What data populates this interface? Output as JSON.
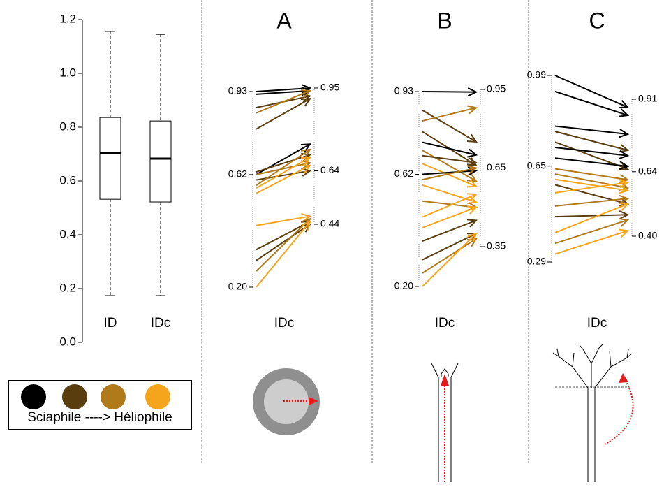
{
  "chart_data": [
    {
      "type": "box",
      "categories": [
        "ID",
        "IDc"
      ],
      "boxes": [
        {
          "min": 0.174,
          "q1": 0.532,
          "median": 0.704,
          "q3": 0.836,
          "max": 1.156
        },
        {
          "min": 0.174,
          "q1": 0.522,
          "median": 0.683,
          "q3": 0.823,
          "max": 1.145
        }
      ],
      "ylim": [
        0,
        1.2
      ],
      "yticks": [
        {
          "value": 0,
          "label": "0.0"
        },
        0.2,
        0.4,
        0.6,
        0.8,
        {
          "value": 1.0,
          "label": "1.0"
        },
        1.2
      ],
      "legend": {
        "colors": [
          "#000000",
          "#5a3d0e",
          "#b07a1a",
          "#f5a51b"
        ],
        "label": "Sciaphile ----> Héliophile"
      }
    },
    {
      "type": "slope",
      "title": "A",
      "xlabel": "IDc",
      "ylim": [
        0.2,
        0.93
      ],
      "yticks": [
        {
          "value": 0.2,
          "label": "0.20"
        },
        0.62,
        0.93
      ],
      "y2lim": [
        0.44,
        0.95
      ],
      "y2ticks": [
        0.44,
        0.64,
        0.95
      ],
      "start": [
        0.93,
        0.92,
        0.87,
        0.85,
        0.79,
        0.62,
        0.63,
        0.62,
        0.6,
        0.57,
        0.58,
        0.55,
        0.43,
        0.34,
        0.3,
        0.26,
        0.2
      ],
      "end": [
        0.95,
        0.94,
        0.92,
        0.94,
        0.91,
        0.74,
        0.7,
        0.67,
        0.64,
        0.69,
        0.72,
        0.66,
        0.47,
        0.45,
        0.44,
        0.46,
        0.45
      ],
      "colors": [
        "#000000",
        "#000000",
        "#5a3d0e",
        "#b07a1a",
        "#5a3d0e",
        "#000000",
        "#5a3d0e",
        "#b07a1a",
        "#5a3d0e",
        "#f5a51b",
        "#b07a1a",
        "#f5a51b",
        "#f5a51b",
        "#5a3d0e",
        "#5a3d0e",
        "#b07a1a",
        "#f5a51b"
      ]
    },
    {
      "type": "slope",
      "title": "B",
      "xlabel": "IDc",
      "ylim": [
        0.2,
        0.93
      ],
      "yticks": [
        {
          "value": 0.2,
          "label": "0.20"
        },
        0.62,
        0.93
      ],
      "y2lim": [
        0.35,
        0.95
      ],
      "y2ticks": [
        0.35,
        0.65,
        0.95
      ],
      "start": [
        0.93,
        0.86,
        0.82,
        0.78,
        0.74,
        0.71,
        0.69,
        0.66,
        0.62,
        0.6,
        0.58,
        0.52,
        0.46,
        0.42,
        0.37,
        0.3,
        0.25,
        0.2
      ],
      "end": [
        0.94,
        0.75,
        0.88,
        0.66,
        0.7,
        0.6,
        0.67,
        0.58,
        0.64,
        0.65,
        0.52,
        0.5,
        0.55,
        0.5,
        0.45,
        0.4,
        0.38,
        0.4
      ],
      "colors": [
        "#000000",
        "#5a3d0e",
        "#b07a1a",
        "#5a3d0e",
        "#000000",
        "#b07a1a",
        "#5a3d0e",
        "#f5a51b",
        "#000000",
        "#b07a1a",
        "#f5a51b",
        "#b07a1a",
        "#f5a51b",
        "#f5a51b",
        "#5a3d0e",
        "#5a3d0e",
        "#b07a1a",
        "#f5a51b"
      ]
    },
    {
      "type": "slope",
      "title": "C",
      "xlabel": "IDc",
      "ylim": [
        0.29,
        0.99
      ],
      "yticks": [
        0.29,
        0.65,
        0.99
      ],
      "y2lim": [
        0.4,
        0.91
      ],
      "y2ticks": [
        {
          "value": 0.4,
          "label": "0.40"
        },
        0.64,
        0.91
      ],
      "start": [
        0.99,
        0.93,
        0.8,
        0.78,
        0.74,
        0.72,
        0.68,
        0.64,
        0.62,
        0.6,
        0.58,
        0.55,
        0.5,
        0.46,
        0.4,
        0.36,
        0.32
      ],
      "end": [
        0.88,
        0.85,
        0.78,
        0.72,
        0.65,
        0.7,
        0.66,
        0.61,
        0.58,
        0.57,
        0.52,
        0.6,
        0.54,
        0.48,
        0.52,
        0.46,
        0.42
      ],
      "colors": [
        "#000000",
        "#000000",
        "#000000",
        "#5a3d0e",
        "#5a3d0e",
        "#000000",
        "#000000",
        "#b07a1a",
        "#b07a1a",
        "#f5a51b",
        "#5a3d0e",
        "#f5a51b",
        "#b07a1a",
        "#5a3d0e",
        "#f5a51b",
        "#b07a1a",
        "#f5a51b"
      ]
    }
  ]
}
